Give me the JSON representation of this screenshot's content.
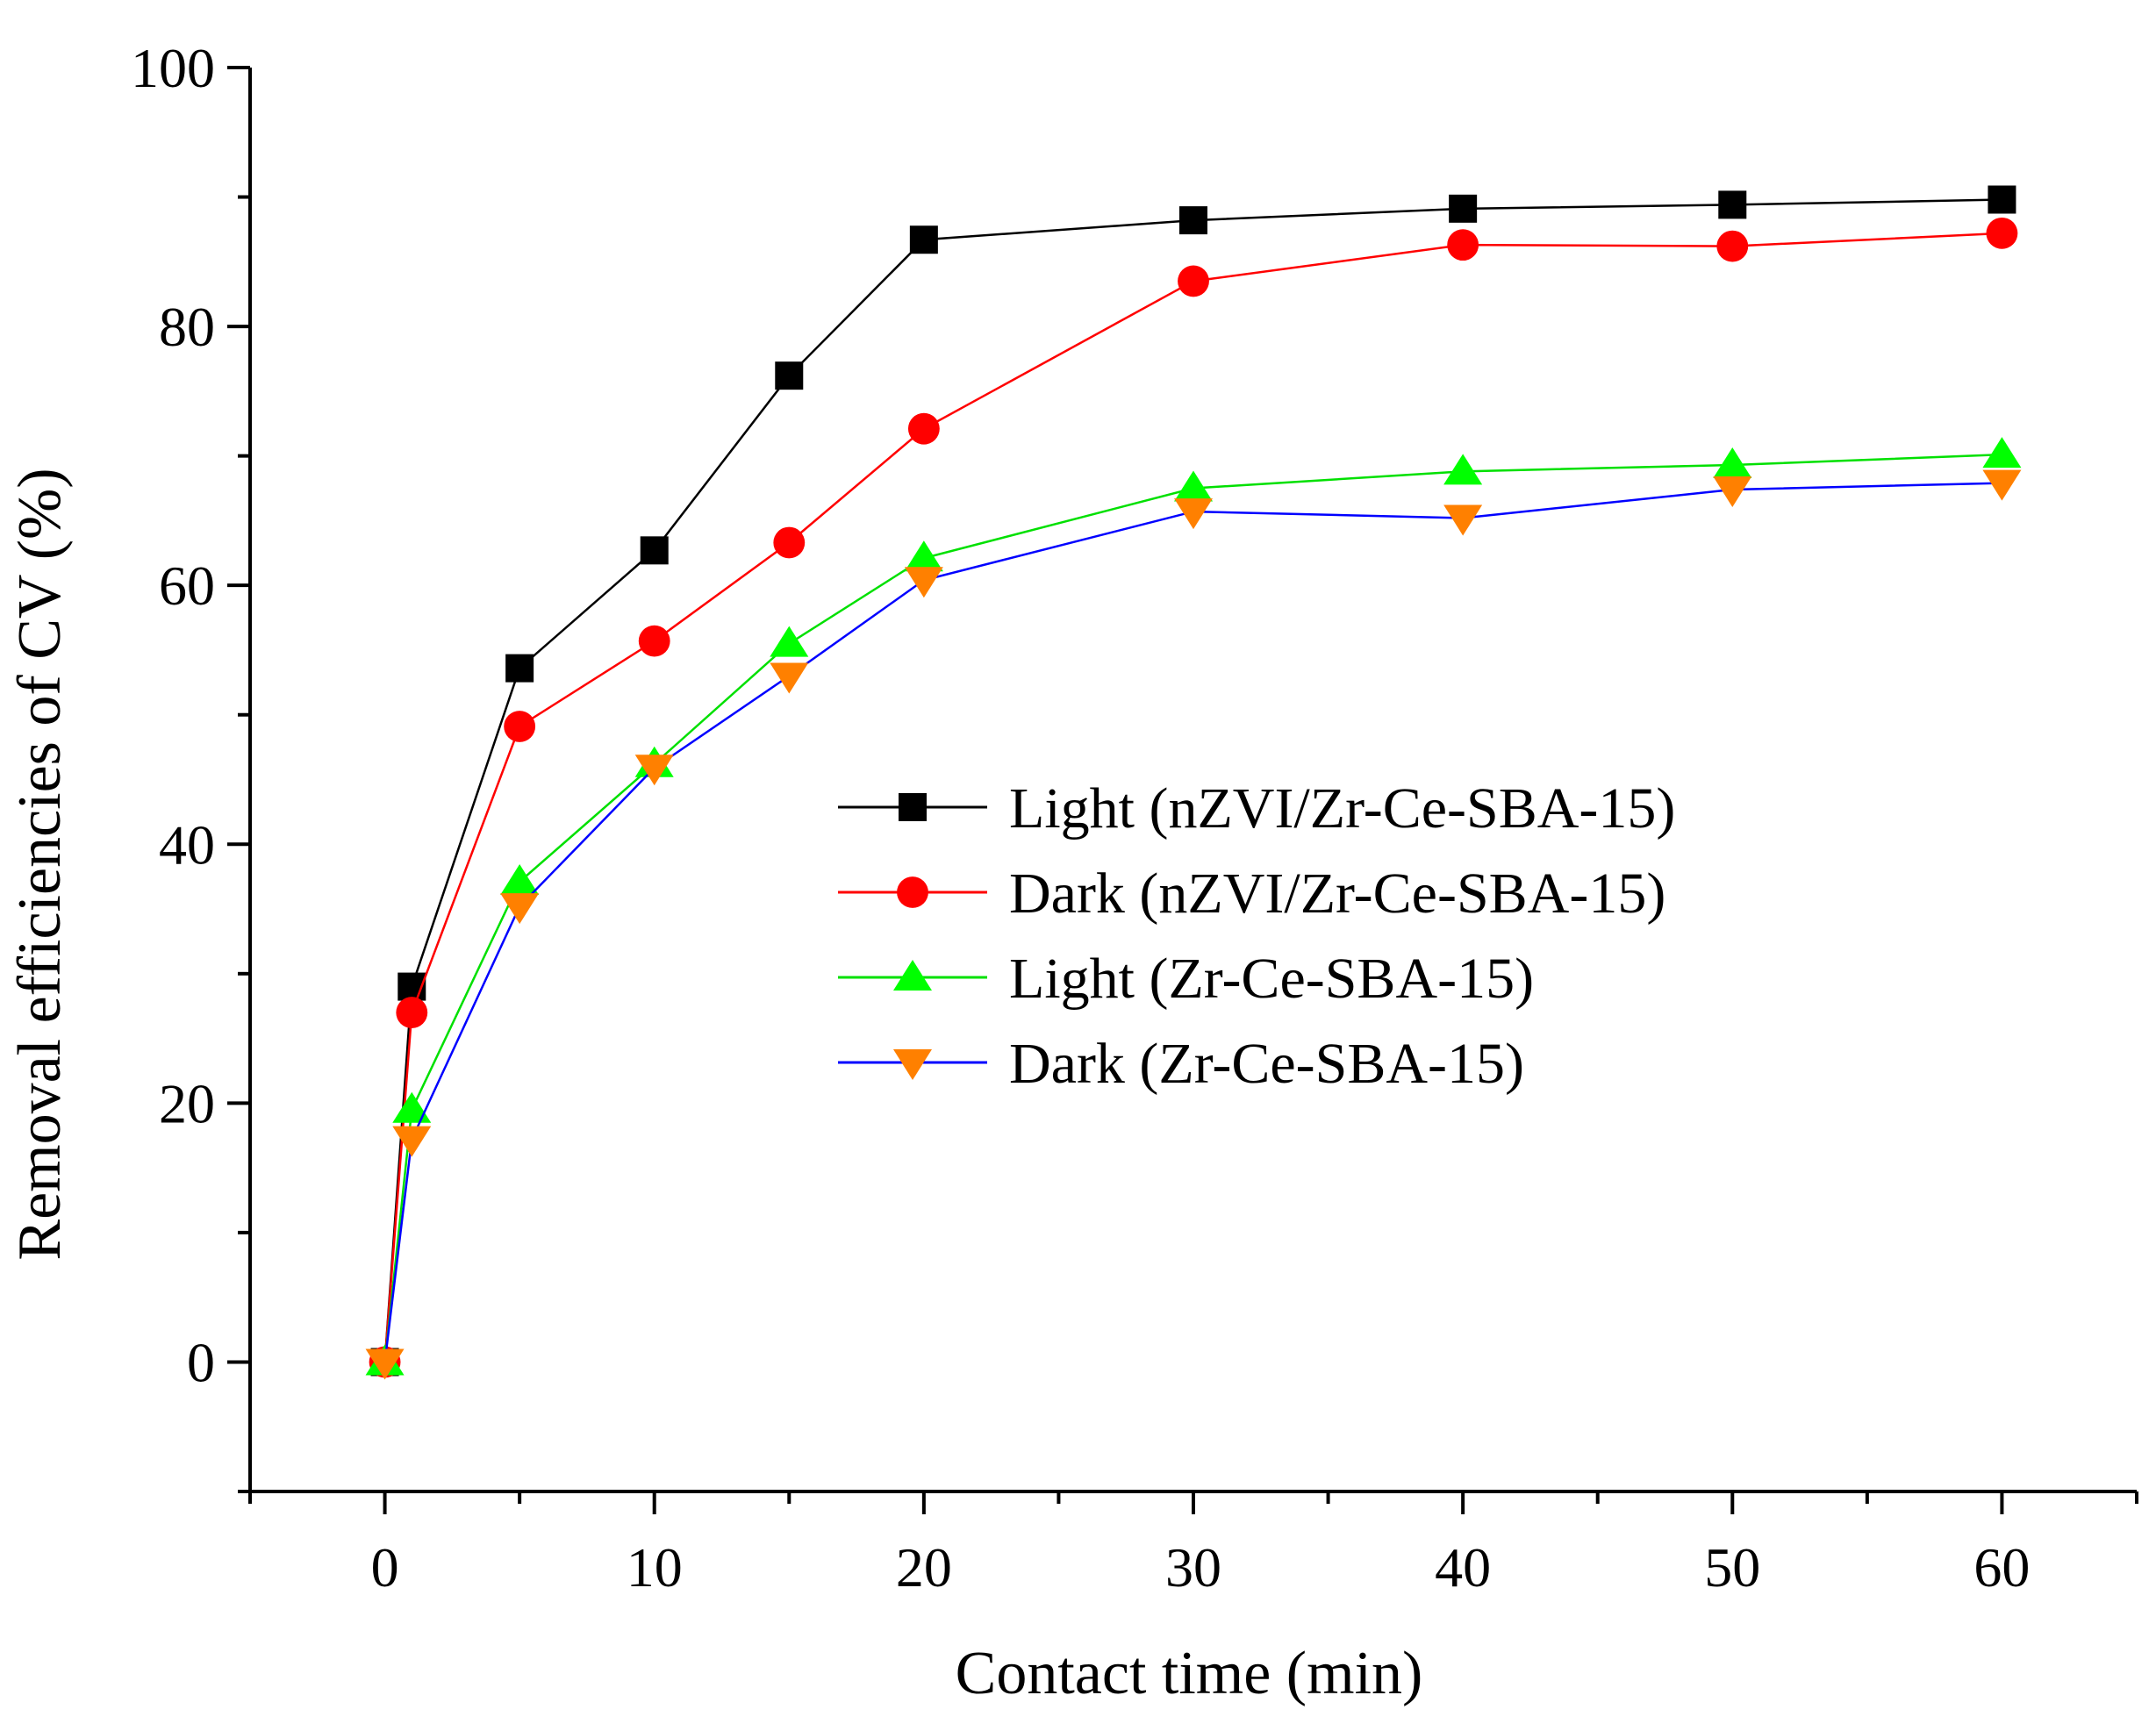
{
  "chart_data": {
    "type": "line",
    "xlabel": "Contact time (min)",
    "ylabel": "Removal efficiencies of CV (%)",
    "xlim": [
      -5,
      65
    ],
    "ylim": [
      -10,
      100
    ],
    "x_ticks": [
      0,
      10,
      20,
      30,
      40,
      50,
      60
    ],
    "y_ticks": [
      0,
      20,
      40,
      60,
      80,
      100
    ],
    "x_tick_labels": [
      "0",
      "10",
      "20",
      "30",
      "40",
      "50",
      "60"
    ],
    "y_tick_labels": [
      "0",
      "20",
      "40",
      "60",
      "80",
      "100"
    ],
    "grid": false,
    "legend_position": "center-right",
    "x": [
      0,
      1,
      5,
      10,
      15,
      20,
      30,
      40,
      50,
      60
    ],
    "series": [
      {
        "name": "Light (nZVI/Zr-Ce-SBA-15)",
        "marker": "square",
        "line_color": "#000000",
        "marker_color": "#000000",
        "values": [
          0,
          29,
          53.6,
          62.7,
          76.2,
          86.7,
          88.2,
          89.1,
          89.4,
          89.8
        ]
      },
      {
        "name": "Dark (nZVI/Zr-Ce-SBA-15)",
        "marker": "circle",
        "line_color": "#ff0000",
        "marker_color": "#ff0000",
        "values": [
          0,
          27,
          49.1,
          55.7,
          63.3,
          72.1,
          83.5,
          86.3,
          86.2,
          87.2
        ]
      },
      {
        "name": "Light (Zr-Ce-SBA-15)",
        "marker": "triangle-up",
        "line_color": "#00e000",
        "marker_color": "#00ff00",
        "values": [
          0,
          19.5,
          37.1,
          46.2,
          55.5,
          62.1,
          67.5,
          68.8,
          69.3,
          70.1
        ]
      },
      {
        "name": "Dark (Zr-Ce-SBA-15)",
        "marker": "triangle-down",
        "line_color": "#0000ff",
        "marker_color": "#ff8000",
        "values": [
          0,
          17.2,
          35.2,
          45.9,
          53.0,
          60.4,
          65.7,
          65.2,
          67.4,
          67.9
        ]
      }
    ]
  }
}
